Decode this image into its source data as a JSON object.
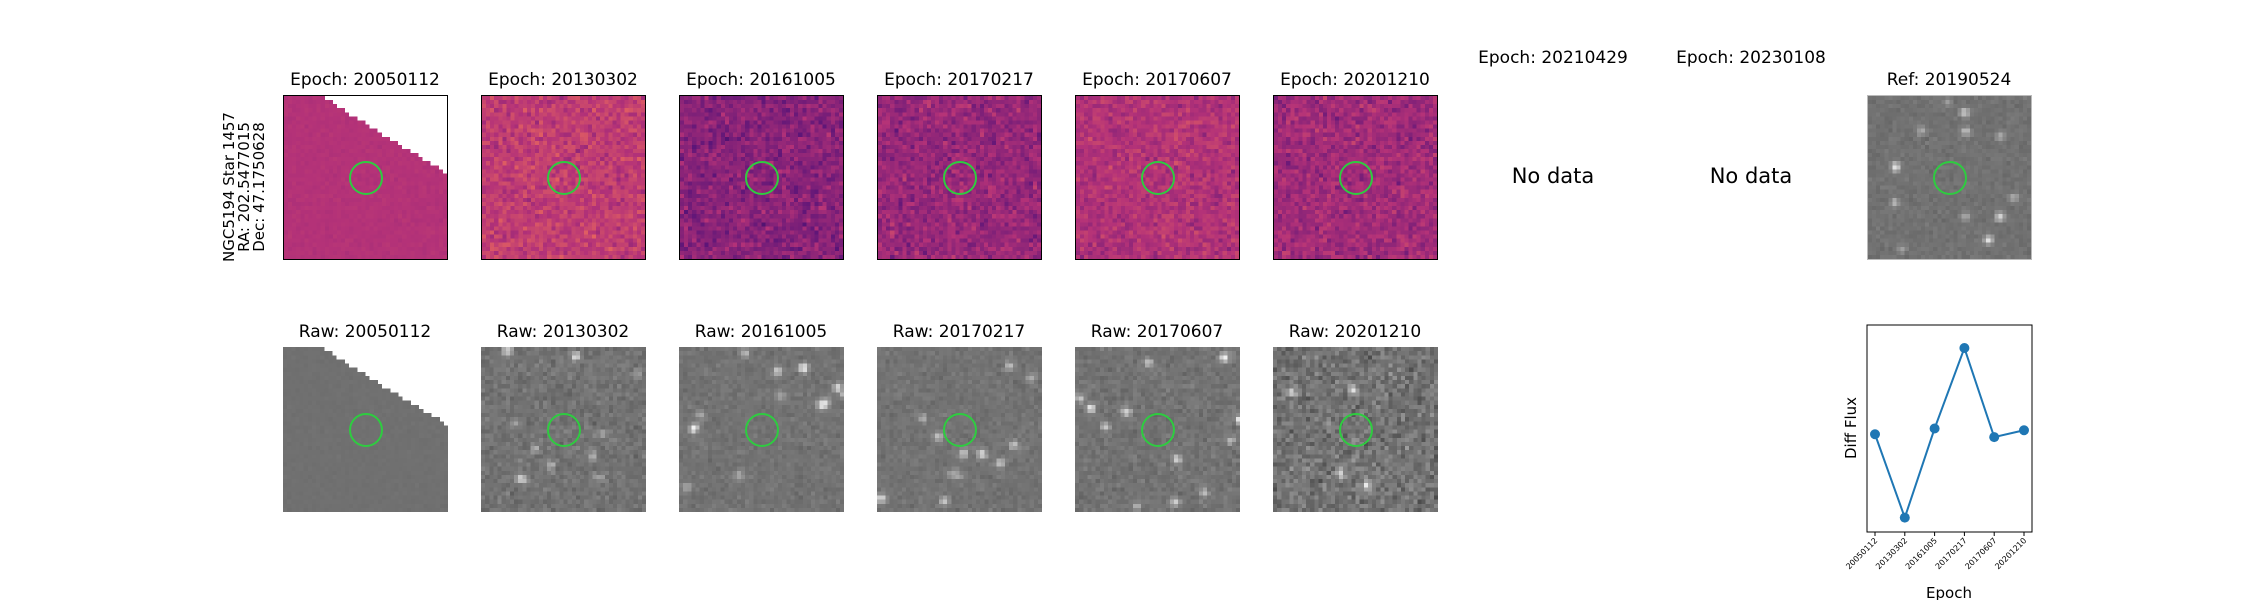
{
  "object": {
    "name": "NGC5194 Star 1457",
    "ra": "RA: 202.5477015",
    "dec": "Dec: 47.1750628"
  },
  "colors": {
    "aperture": "#2ecc40",
    "line": "#1f77b4"
  },
  "epochs": [
    {
      "label": "Epoch: 20050112",
      "raw_label": "Raw: 20050112",
      "has_data": true
    },
    {
      "label": "Epoch: 20130302",
      "raw_label": "Raw: 20130302",
      "has_data": true
    },
    {
      "label": "Epoch: 20161005",
      "raw_label": "Raw: 20161005",
      "has_data": true
    },
    {
      "label": "Epoch: 20170217",
      "raw_label": "Raw: 20170217",
      "has_data": true
    },
    {
      "label": "Epoch: 20170607",
      "raw_label": "Raw: 20170607",
      "has_data": true
    },
    {
      "label": "Epoch: 20201210",
      "raw_label": "Raw: 20201210",
      "has_data": true
    },
    {
      "label": "Epoch: 20210429",
      "has_data": false
    },
    {
      "label": "Epoch: 20230108",
      "has_data": false
    }
  ],
  "no_data_text": "No data",
  "ref_title": "Ref: 20190524",
  "chart_data": {
    "type": "line",
    "x": [
      "20050112",
      "20130302",
      "20161005",
      "20170217",
      "20170607",
      "20201210"
    ],
    "values": [
      0.0,
      -1.45,
      0.1,
      1.5,
      -0.05,
      0.07
    ],
    "xlabel": "Epoch",
    "ylabel": "Diff Flux",
    "ylim": [
      -1.7,
      1.9
    ],
    "grid": false
  }
}
